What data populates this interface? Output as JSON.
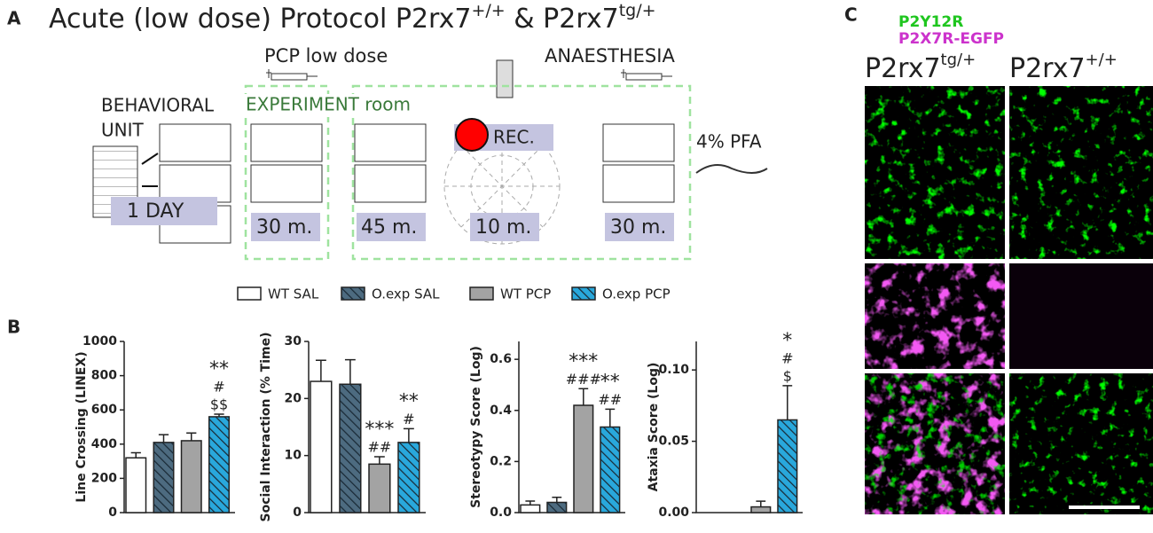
{
  "panel_a": {
    "letter": "A",
    "title": [
      "Acute (low dose) Protocol P2rx7",
      "+/+",
      " & P2rx7",
      "tg/+"
    ],
    "pcp": "PCP low dose",
    "anaesthesia": "ANAESTHESIA",
    "unit": [
      "BEHAVIORAL",
      "UNIT"
    ],
    "room": "EXPERIMENT room",
    "rec": "REC.",
    "pfa": "4% PFA",
    "day": "1 DAY",
    "durations": [
      "30 m.",
      "45 m.",
      "10 m.",
      "30 m."
    ]
  },
  "panel_b": {
    "letter": "B",
    "legend": [
      {
        "name": "WT SAL",
        "color": "#ffffff",
        "hatch": false
      },
      {
        "name": "O.exp SAL",
        "color": "#4d6b80",
        "hatch": true
      },
      {
        "name": "WT PCP",
        "color": "#a3a3a3",
        "hatch": false
      },
      {
        "name": "O.exp PCP",
        "color": "#29a8dc",
        "hatch": true
      }
    ]
  },
  "chart_data": [
    {
      "type": "bar",
      "y_label": "Line Crossing (LINEX)",
      "ylim": [
        0,
        1000
      ],
      "yticks": [
        0,
        200,
        400,
        600,
        800,
        1000
      ],
      "values": [
        320,
        410,
        420,
        560
      ],
      "errors": [
        30,
        45,
        45,
        15
      ],
      "annotations": [
        [],
        [],
        [],
        [
          "**",
          "#",
          "$$"
        ]
      ]
    },
    {
      "type": "bar",
      "y_label": "Social Interaction (% Time)",
      "ylim": [
        0,
        30
      ],
      "yticks": [
        0,
        10,
        20,
        30
      ],
      "values": [
        23,
        22.5,
        8.5,
        12.3
      ],
      "errors": [
        3.7,
        4.3,
        1.3,
        2.4
      ],
      "annotations": [
        [],
        [],
        [
          "***",
          "##"
        ],
        [
          "**",
          "#"
        ]
      ]
    },
    {
      "type": "bar",
      "y_label": "Stereotypy Score (Log)",
      "ylim": [
        0,
        0.67
      ],
      "yticks": [
        {
          "value": 0,
          "label": "0.0"
        },
        0.2,
        0.4,
        0.6
      ],
      "values": [
        0.03,
        0.04,
        0.42,
        0.335
      ],
      "errors": [
        0.015,
        0.02,
        0.065,
        0.07
      ],
      "annotations": [
        [],
        [],
        [
          "***",
          "###"
        ],
        [
          "**",
          "##"
        ]
      ]
    },
    {
      "type": "bar",
      "y_label": "Ataxia Score (Log)",
      "ylim": [
        0,
        0.12
      ],
      "yticks": [
        {
          "value": 0,
          "label": "0.00"
        },
        0.05,
        {
          "value": 0.1,
          "label": "0.10"
        }
      ],
      "values": [
        0,
        0,
        0.004,
        0.065
      ],
      "errors": [
        0,
        0,
        0.004,
        0.024
      ],
      "annotations": [
        [],
        [],
        [],
        [
          "*",
          "#",
          "$"
        ]
      ]
    }
  ],
  "panel_c": {
    "letter": "C",
    "stains": [
      "P2Y12R",
      "P2X7R-EGFP"
    ],
    "columns": [
      [
        "P2rx7",
        "tg/+"
      ],
      [
        "P2rx7",
        "+/+"
      ]
    ]
  }
}
